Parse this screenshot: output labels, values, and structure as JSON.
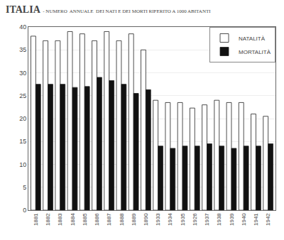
{
  "chart_data": {
    "type": "bar",
    "title": "ITALIA",
    "subtitle": "- NUMERO  ANNUALE  DEI NATI E DEI MORTI RIFERITO A 1000 ABITANTI",
    "categories": [
      "1881",
      "1882",
      "1883",
      "1884",
      "1885",
      "1886",
      "1887",
      "1888",
      "1889",
      "1890",
      "1933",
      "1934",
      "1935",
      "1926",
      "1937",
      "1938",
      "1939",
      "1940",
      "1941",
      "1942"
    ],
    "series": [
      {
        "name": "NATALITÀ",
        "color": "#ffffff",
        "values": [
          38.0,
          37.0,
          37.0,
          39.0,
          38.5,
          37.0,
          39.0,
          37.0,
          38.5,
          35.0,
          24.0,
          23.5,
          23.5,
          22.3,
          23.0,
          24.0,
          23.5,
          23.5,
          21.0,
          20.5
        ]
      },
      {
        "name": "MORTALITÀ",
        "color": "#111111",
        "values": [
          27.5,
          27.5,
          27.5,
          26.8,
          27.0,
          29.0,
          28.3,
          27.5,
          25.5,
          26.3,
          14.0,
          13.5,
          14.0,
          14.0,
          14.5,
          14.0,
          13.5,
          14.0,
          14.0,
          14.5
        ]
      }
    ],
    "ylim": [
      0,
      40
    ],
    "yticks": [
      0,
      5,
      10,
      15,
      20,
      25,
      30,
      35,
      40
    ],
    "grid": true,
    "legend": "upper right"
  }
}
